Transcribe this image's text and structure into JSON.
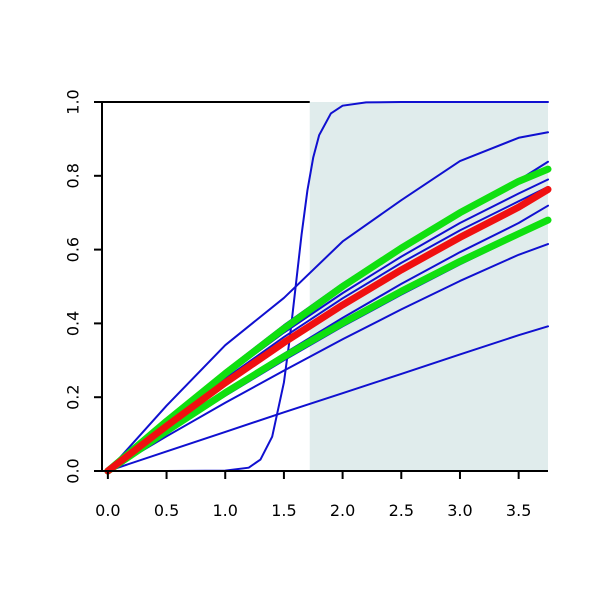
{
  "chart_data": {
    "type": "line",
    "title": "",
    "xlabel": "",
    "ylabel": "",
    "xlim": [
      -0.05,
      3.75
    ],
    "ylim": [
      0.0,
      1.0
    ],
    "x_ticks": [
      "0.0",
      "0.5",
      "1.0",
      "1.5",
      "2.0",
      "2.5",
      "3.0",
      "3.5"
    ],
    "y_ticks": [
      "0.0",
      "0.2",
      "0.4",
      "0.6",
      "0.8",
      "1.0"
    ],
    "shaded_region": {
      "x_from": 1.72,
      "x_to": 3.75,
      "color": "#e0ecec"
    },
    "colors": {
      "blue": "#1010d0",
      "green": "#10e010",
      "red": "#f01010",
      "shade": "#e0ecec"
    },
    "series": [
      {
        "color": "blue",
        "points": [
          [
            0,
            0
          ],
          [
            0.5,
            0.177
          ],
          [
            1.0,
            0.341
          ],
          [
            1.5,
            0.469
          ],
          [
            2.0,
            0.622
          ],
          [
            2.5,
            0.734
          ],
          [
            3.0,
            0.84
          ],
          [
            3.5,
            0.903
          ],
          [
            3.75,
            0.918
          ]
        ]
      },
      {
        "color": "blue",
        "points": [
          [
            0,
            0
          ],
          [
            0.5,
            0.139
          ],
          [
            1.0,
            0.272
          ],
          [
            1.5,
            0.395
          ],
          [
            2.0,
            0.508
          ],
          [
            2.5,
            0.61
          ],
          [
            3.0,
            0.702
          ],
          [
            3.5,
            0.788
          ],
          [
            3.75,
            0.838
          ]
        ]
      },
      {
        "color": "blue",
        "points": [
          [
            0,
            0
          ],
          [
            0.5,
            0.132
          ],
          [
            1.0,
            0.258
          ],
          [
            1.5,
            0.375
          ],
          [
            2.0,
            0.482
          ],
          [
            2.5,
            0.581
          ],
          [
            3.0,
            0.672
          ],
          [
            3.5,
            0.752
          ],
          [
            3.75,
            0.79
          ]
        ]
      },
      {
        "color": "blue",
        "points": [
          [
            0,
            0
          ],
          [
            0.5,
            0.128
          ],
          [
            1.0,
            0.25
          ],
          [
            1.5,
            0.363
          ],
          [
            2.0,
            0.468
          ],
          [
            2.5,
            0.564
          ],
          [
            3.0,
            0.652
          ],
          [
            3.5,
            0.731
          ],
          [
            3.75,
            0.77
          ]
        ]
      },
      {
        "color": "blue",
        "points": [
          [
            0,
            0
          ],
          [
            0.5,
            0.11
          ],
          [
            1.0,
            0.217
          ],
          [
            1.5,
            0.318
          ],
          [
            2.0,
            0.415
          ],
          [
            2.5,
            0.507
          ],
          [
            3.0,
            0.593
          ],
          [
            3.5,
            0.672
          ],
          [
            3.75,
            0.719
          ]
        ]
      },
      {
        "color": "blue",
        "points": [
          [
            0,
            0
          ],
          [
            0.5,
            0.103
          ],
          [
            1.0,
            0.204
          ],
          [
            1.5,
            0.3
          ],
          [
            2.0,
            0.392
          ],
          [
            2.5,
            0.478
          ],
          [
            3.0,
            0.56
          ],
          [
            3.5,
            0.637
          ],
          [
            3.75,
            0.675
          ]
        ]
      },
      {
        "color": "blue",
        "points": [
          [
            0,
            0
          ],
          [
            0.5,
            0.094
          ],
          [
            1.0,
            0.185
          ],
          [
            1.5,
            0.272
          ],
          [
            2.0,
            0.357
          ],
          [
            2.5,
            0.438
          ],
          [
            3.0,
            0.515
          ],
          [
            3.5,
            0.586
          ],
          [
            3.75,
            0.615
          ]
        ]
      },
      {
        "color": "blue",
        "points": [
          [
            0,
            0
          ],
          [
            0.5,
            0.053
          ],
          [
            1.0,
            0.106
          ],
          [
            1.5,
            0.159
          ],
          [
            2.0,
            0.211
          ],
          [
            2.5,
            0.263
          ],
          [
            3.0,
            0.316
          ],
          [
            3.5,
            0.368
          ],
          [
            3.75,
            0.392
          ]
        ]
      },
      {
        "color": "blue",
        "points": [
          [
            0,
            0
          ],
          [
            0.5,
            0
          ],
          [
            1.0,
            0.001
          ],
          [
            1.2,
            0.009
          ],
          [
            1.3,
            0.031
          ],
          [
            1.4,
            0.093
          ],
          [
            1.5,
            0.24
          ],
          [
            1.55,
            0.36
          ],
          [
            1.6,
            0.5
          ],
          [
            1.65,
            0.64
          ],
          [
            1.7,
            0.76
          ],
          [
            1.75,
            0.85
          ],
          [
            1.8,
            0.91
          ],
          [
            1.9,
            0.969
          ],
          [
            2.0,
            0.99
          ],
          [
            2.2,
            0.999
          ],
          [
            2.5,
            1.0
          ],
          [
            3.75,
            1.0
          ]
        ]
      },
      {
        "color": "green",
        "width": 7,
        "points": [
          [
            0,
            0
          ],
          [
            0.5,
            0.135
          ],
          [
            1.0,
            0.264
          ],
          [
            1.5,
            0.386
          ],
          [
            2.0,
            0.5
          ],
          [
            2.5,
            0.604
          ],
          [
            3.0,
            0.7
          ],
          [
            3.5,
            0.785
          ],
          [
            3.75,
            0.818
          ]
        ]
      },
      {
        "color": "green",
        "width": 7,
        "points": [
          [
            0,
            0
          ],
          [
            0.5,
            0.108
          ],
          [
            1.0,
            0.212
          ],
          [
            1.5,
            0.31
          ],
          [
            2.0,
            0.401
          ],
          [
            2.5,
            0.487
          ],
          [
            3.0,
            0.568
          ],
          [
            3.5,
            0.643
          ],
          [
            3.75,
            0.68
          ]
        ]
      },
      {
        "color": "red",
        "width": 7,
        "points": [
          [
            0,
            0
          ],
          [
            0.5,
            0.122
          ],
          [
            1.0,
            0.239
          ],
          [
            1.5,
            0.348
          ],
          [
            2.0,
            0.45
          ],
          [
            2.5,
            0.545
          ],
          [
            3.0,
            0.633
          ],
          [
            3.5,
            0.715
          ],
          [
            3.75,
            0.763
          ]
        ]
      }
    ]
  }
}
